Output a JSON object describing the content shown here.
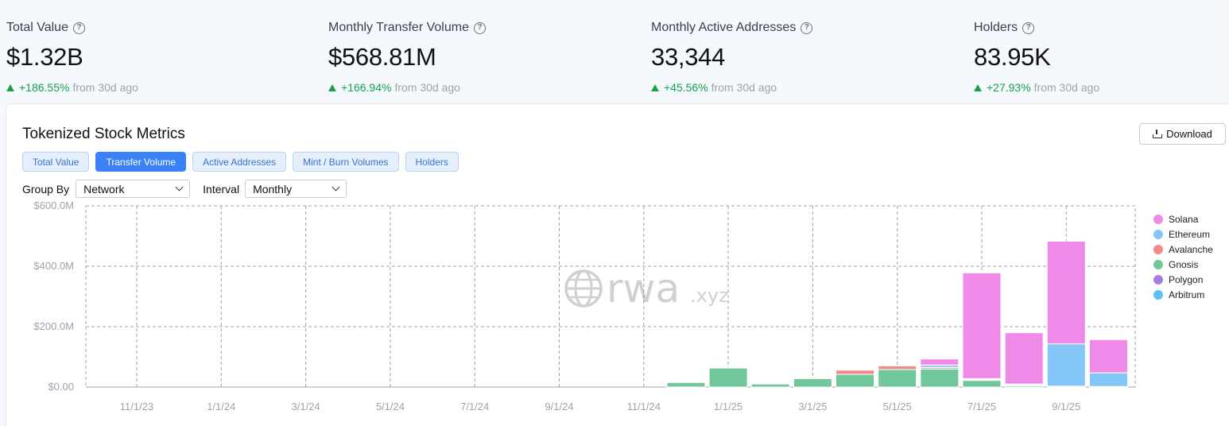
{
  "stats": [
    {
      "label": "Total Value",
      "value": "$1.32B",
      "change": "+186.55%",
      "suffix": "from 30d ago"
    },
    {
      "label": "Monthly Transfer Volume",
      "value": "$568.81M",
      "change": "+166.94%",
      "suffix": "from 30d ago"
    },
    {
      "label": "Monthly Active Addresses",
      "value": "33,344",
      "change": "+45.56%",
      "suffix": "from 30d ago"
    },
    {
      "label": "Holders",
      "value": "83.95K",
      "change": "+27.93%",
      "suffix": "from 30d ago"
    }
  ],
  "card": {
    "title": "Tokenized Stock Metrics",
    "download_label": "Download",
    "tabs": [
      "Total Value",
      "Transfer Volume",
      "Active Addresses",
      "Mint / Burn Volumes",
      "Holders"
    ],
    "active_tab": "Transfer Volume",
    "group_by_label": "Group By",
    "group_by_value": "Network",
    "interval_label": "Interval",
    "interval_value": "Monthly",
    "watermark_main": "rwa",
    "watermark_sub": ".xyz"
  },
  "chart_data": {
    "type": "bar",
    "stacked": true,
    "title": "",
    "xlabel": "",
    "ylabel": "",
    "ylim": [
      0,
      600
    ],
    "y_unit": "$M",
    "y_ticks": [
      0,
      200,
      400,
      600
    ],
    "y_tick_labels": [
      "$0.00",
      "$200.0M",
      "$400.0M",
      "$600.0M"
    ],
    "x_tick_labels": [
      "11/1/23",
      "1/1/24",
      "3/1/24",
      "5/1/24",
      "7/1/24",
      "9/1/24",
      "11/1/24",
      "1/1/25",
      "3/1/25",
      "5/1/25",
      "7/1/25",
      "9/1/25"
    ],
    "grid": true,
    "legend_position": "right",
    "categories": [
      "12/1/24",
      "1/1/25",
      "2/1/25",
      "3/1/25",
      "4/1/25",
      "5/1/25",
      "6/1/25",
      "7/1/25",
      "8/1/25",
      "9/1/25",
      "10/1/25"
    ],
    "series": [
      {
        "name": "Arbitrum",
        "color": "#5bc0f5",
        "values": [
          0,
          0,
          0,
          0,
          0,
          0,
          0,
          0,
          0,
          0,
          0
        ]
      },
      {
        "name": "Polygon",
        "color": "#a47fe0",
        "values": [
          0,
          0,
          0,
          0,
          0,
          0,
          0,
          0,
          0,
          0,
          0
        ]
      },
      {
        "name": "Gnosis",
        "color": "#6fc79a",
        "values": [
          15,
          63,
          10,
          28,
          42,
          58,
          60,
          22,
          5,
          3,
          2
        ]
      },
      {
        "name": "Avalanche",
        "color": "#f08a8a",
        "values": [
          0,
          0,
          0,
          3,
          14,
          12,
          5,
          3,
          2,
          0,
          0
        ]
      },
      {
        "name": "Ethereum",
        "color": "#84c6f8",
        "values": [
          0,
          0,
          0,
          0,
          0,
          0,
          8,
          3,
          3,
          140,
          45
        ]
      },
      {
        "name": "Solana",
        "color": "#f08ae8",
        "values": [
          0,
          0,
          0,
          0,
          0,
          0,
          20,
          350,
          170,
          340,
          110
        ]
      }
    ],
    "legend_order": [
      "Solana",
      "Ethereum",
      "Avalanche",
      "Gnosis",
      "Polygon",
      "Arbitrum"
    ]
  }
}
